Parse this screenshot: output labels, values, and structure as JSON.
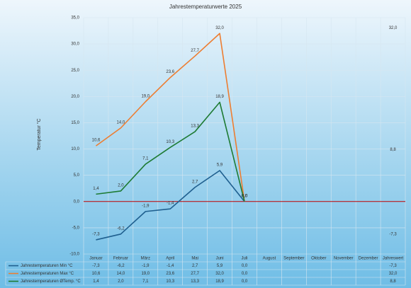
{
  "chart_data": {
    "type": "line",
    "title": "Jahrestemperaturwerte 2025",
    "y_label": "Temperatur °C",
    "categories": [
      "Januar",
      "Februar",
      "März",
      "April",
      "Mai",
      "Juni",
      "Juli",
      "August",
      "September",
      "Oktober",
      "November",
      "Dezember",
      "Jahreswert"
    ],
    "series": [
      {
        "name": "Jahrestemperaturen Min °C",
        "color": "#1f5f8f",
        "values": [
          -7.3,
          -6.2,
          -1.9,
          -1.4,
          2.7,
          5.9,
          0.0,
          null,
          null,
          null,
          null,
          null,
          -7.3
        ],
        "value_labels": [
          "-7,3",
          "-6,2",
          "-1,9",
          "-1,4",
          "2,7",
          "5,9",
          "0,0",
          null,
          null,
          null,
          null,
          null,
          "-7,3"
        ]
      },
      {
        "name": "Jahrestemperaturen Max °C",
        "color": "#ed7d31",
        "values": [
          10.6,
          14.0,
          19.0,
          23.6,
          27.7,
          32.0,
          0.0,
          null,
          null,
          null,
          null,
          null,
          32.0
        ],
        "value_labels": [
          "10,6",
          "14,0",
          "19,0",
          "23,6",
          "27,7",
          "32,0",
          "0,0",
          null,
          null,
          null,
          null,
          null,
          "32,0"
        ]
      },
      {
        "name": "Jahrestemperaturen ØTemp. °C",
        "color": "#1e7b34",
        "values": [
          1.4,
          2.0,
          7.1,
          10.3,
          13.3,
          18.9,
          0.0,
          null,
          null,
          null,
          null,
          null,
          8.8
        ],
        "value_labels": [
          "1,4",
          "2,0",
          "7,1",
          "10,3",
          "13,3",
          "18,9",
          "0,0",
          null,
          null,
          null,
          null,
          null,
          "8,8"
        ]
      }
    ],
    "ylim": [
      -10,
      35
    ],
    "yticks": [
      {
        "value": -10,
        "label": "-10,0"
      },
      {
        "value": -5,
        "label": "-5,0"
      },
      {
        "value": 0,
        "label": "0,0"
      },
      {
        "value": 5,
        "label": "5,0"
      },
      {
        "value": 10,
        "label": "10,0"
      },
      {
        "value": 15,
        "label": "15,0"
      },
      {
        "value": 20,
        "label": "20,0"
      },
      {
        "value": 25,
        "label": "25,0"
      },
      {
        "value": 30,
        "label": "30,0"
      },
      {
        "value": 35,
        "label": "35,0"
      }
    ],
    "grid": true,
    "zero_line_color": "#c00000"
  }
}
